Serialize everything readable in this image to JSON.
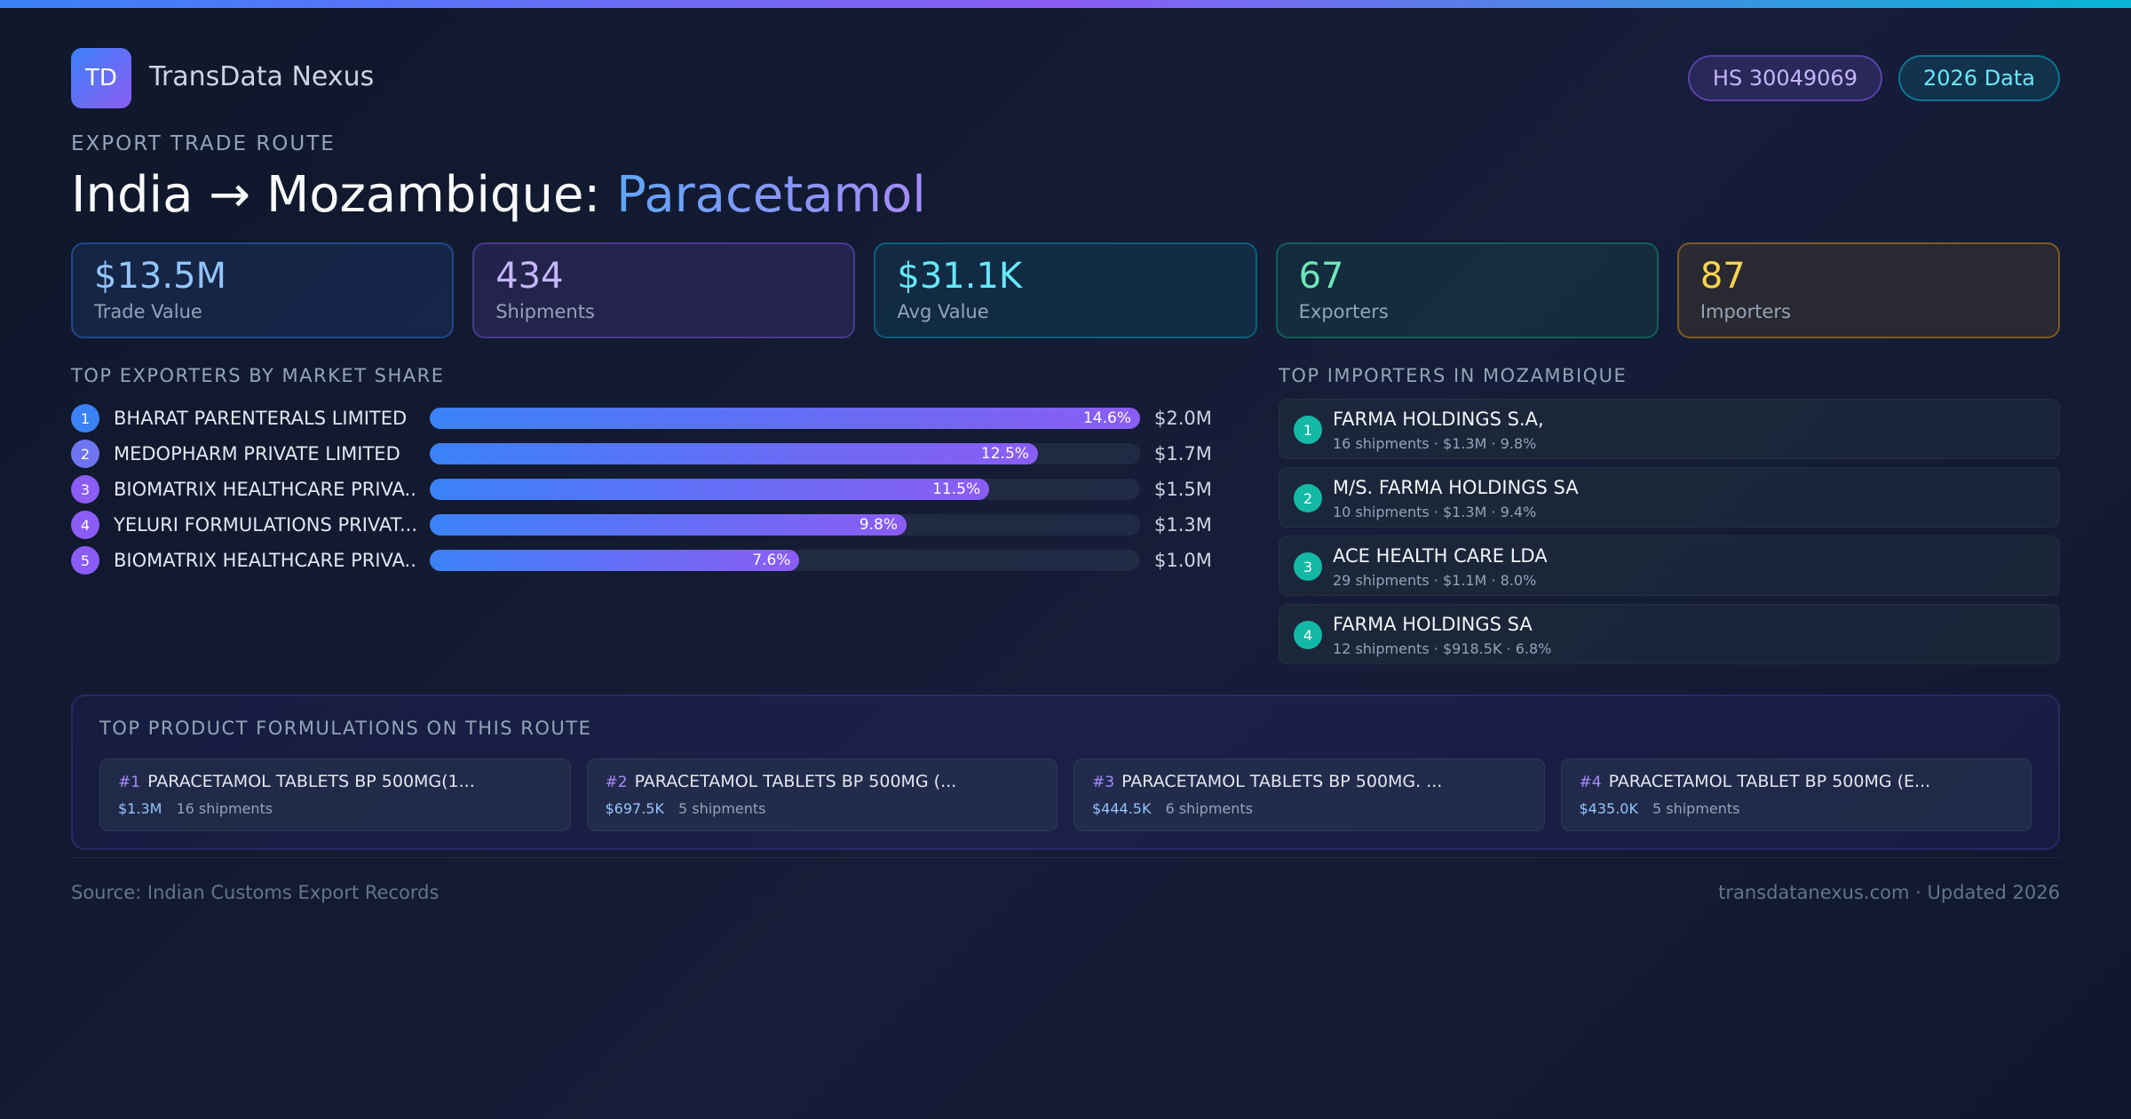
{
  "brand": {
    "logo_text": "TD",
    "name": "TransData Nexus"
  },
  "badges": {
    "hs_code": "HS 30049069",
    "data_year": "2026 Data"
  },
  "route": {
    "eyebrow": "EXPORT TRADE ROUTE",
    "title_prefix": "India → Mozambique: ",
    "product": "Paracetamol"
  },
  "stats": [
    {
      "value": "$13.5M",
      "label": "Trade Value"
    },
    {
      "value": "434",
      "label": "Shipments"
    },
    {
      "value": "$31.1K",
      "label": "Avg Value"
    },
    {
      "value": "67",
      "label": "Exporters"
    },
    {
      "value": "87",
      "label": "Importers"
    }
  ],
  "exporters": {
    "title": "TOP EXPORTERS BY MARKET SHARE",
    "items": [
      {
        "rank": "1",
        "name": "BHARAT PARENTERALS LIMITED",
        "share": 14.6,
        "share_label": "14.6%",
        "value": "$2.0M",
        "color": "#3b82f6"
      },
      {
        "rank": "2",
        "name": "MEDOPHARM PRIVATE LIMITED",
        "share": 12.5,
        "share_label": "12.5%",
        "value": "$1.7M",
        "color": "#6d75f0"
      },
      {
        "rank": "3",
        "name": "BIOMATRIX HEALTHCARE PRIVA...",
        "share": 11.5,
        "share_label": "11.5%",
        "value": "$1.5M",
        "color": "#8b5cf6"
      },
      {
        "rank": "4",
        "name": "YELURI FORMULATIONS PRIVAT...",
        "share": 9.8,
        "share_label": "9.8%",
        "value": "$1.3M",
        "color": "#8b5cf6"
      },
      {
        "rank": "5",
        "name": "BIOMATRIX HEALTHCARE PRIVA...",
        "share": 7.6,
        "share_label": "7.6%",
        "value": "$1.0M",
        "color": "#8b5cf6"
      }
    ]
  },
  "importers": {
    "title": "TOP IMPORTERS IN MOZAMBIQUE",
    "items": [
      {
        "rank": "1",
        "name": "FARMA HOLDINGS S.A,",
        "meta": "16 shipments · $1.3M · 9.8%"
      },
      {
        "rank": "2",
        "name": "M/S. FARMA HOLDINGS SA",
        "meta": "10 shipments · $1.3M · 9.4%"
      },
      {
        "rank": "3",
        "name": "ACE HEALTH CARE LDA",
        "meta": "29 shipments · $1.1M · 8.0%"
      },
      {
        "rank": "4",
        "name": "FARMA HOLDINGS SA",
        "meta": "12 shipments · $918.5K · 6.8%"
      }
    ]
  },
  "products": {
    "title": "TOP PRODUCT FORMULATIONS ON THIS ROUTE",
    "items": [
      {
        "rank": "#1",
        "name": "PARACETAMOL TABLETS BP 500MG(1...",
        "value": "$1.3M",
        "shipments": "16 shipments"
      },
      {
        "rank": "#2",
        "name": "PARACETAMOL TABLETS BP 500MG (...",
        "value": "$697.5K",
        "shipments": "5 shipments"
      },
      {
        "rank": "#3",
        "name": "PARACETAMOL TABLETS BP 500MG. ...",
        "value": "$444.5K",
        "shipments": "6 shipments"
      },
      {
        "rank": "#4",
        "name": "PARACETAMOL TABLET BP 500MG (E...",
        "value": "$435.0K",
        "shipments": "5 shipments"
      }
    ]
  },
  "footer": {
    "source": "Source: Indian Customs Export Records",
    "site": "transdatanexus.com · Updated 2026"
  }
}
